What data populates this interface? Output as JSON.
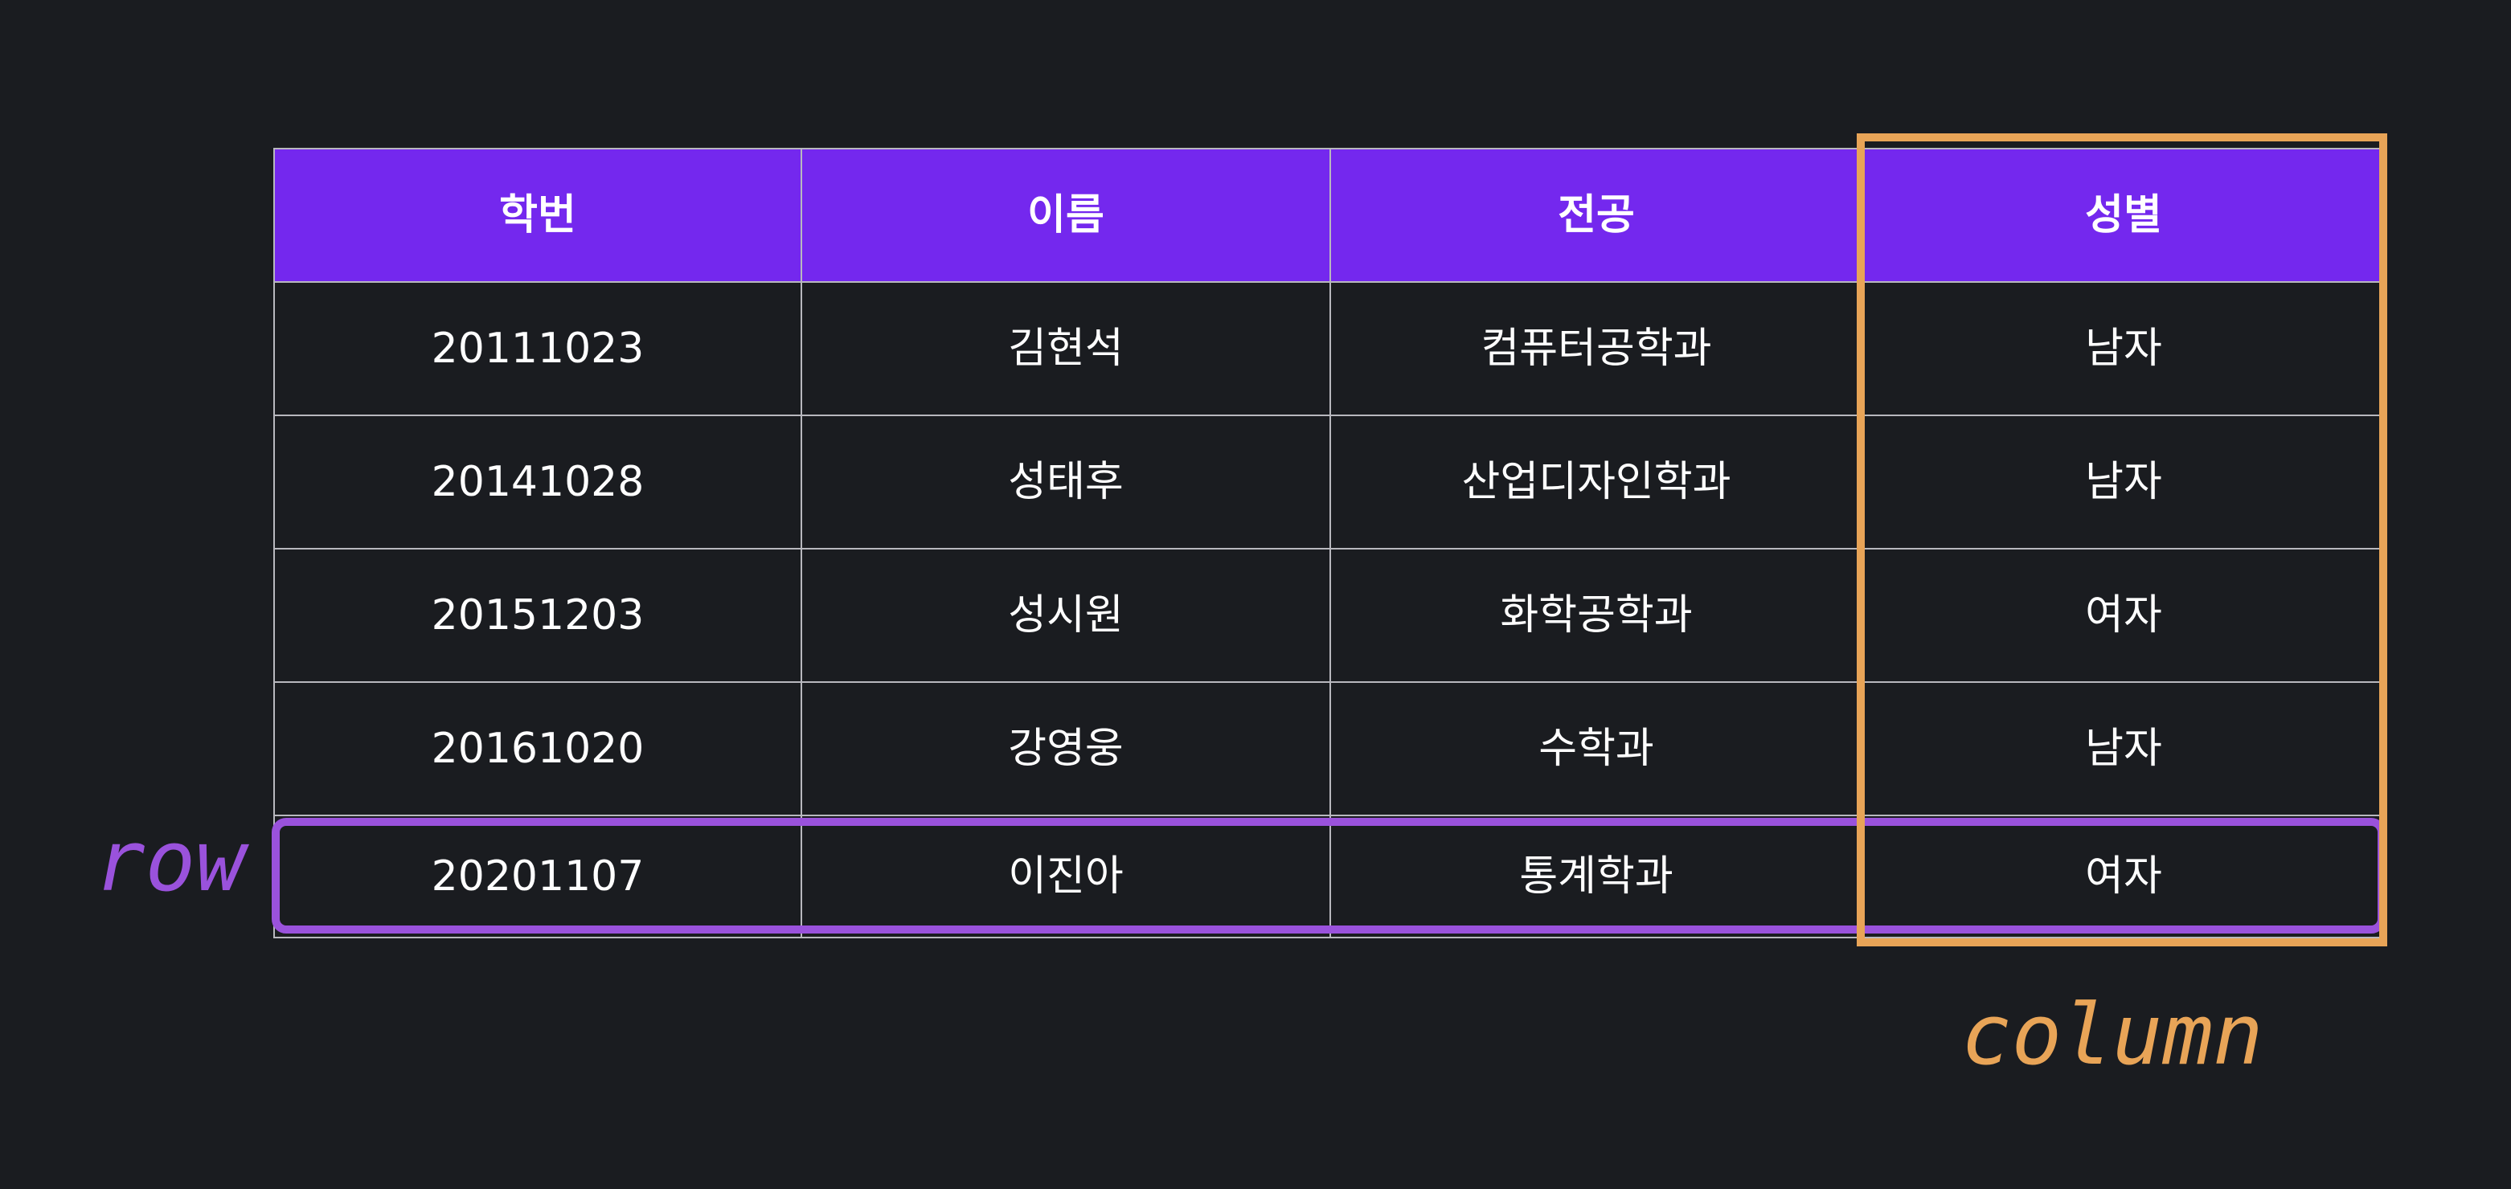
{
  "table": {
    "headers": [
      "학번",
      "이름",
      "전공",
      "성별"
    ],
    "rows": [
      [
        "20111023",
        "김현석",
        "컴퓨터공학과",
        "남자"
      ],
      [
        "20141028",
        "성태후",
        "산업디자인학과",
        "남자"
      ],
      [
        "20151203",
        "성시원",
        "화학공학과",
        "여자"
      ],
      [
        "20161020",
        "강영웅",
        "수학과",
        "남자"
      ],
      [
        "20201107",
        "이진아",
        "통계학과",
        "여자"
      ]
    ]
  },
  "annotations": {
    "row_label": "row",
    "column_label": "column"
  },
  "colors": {
    "background": "#1a1c20",
    "header_background": "#7428ee",
    "row_highlight": "#9a52dc",
    "column_highlight": "#e8a457"
  }
}
